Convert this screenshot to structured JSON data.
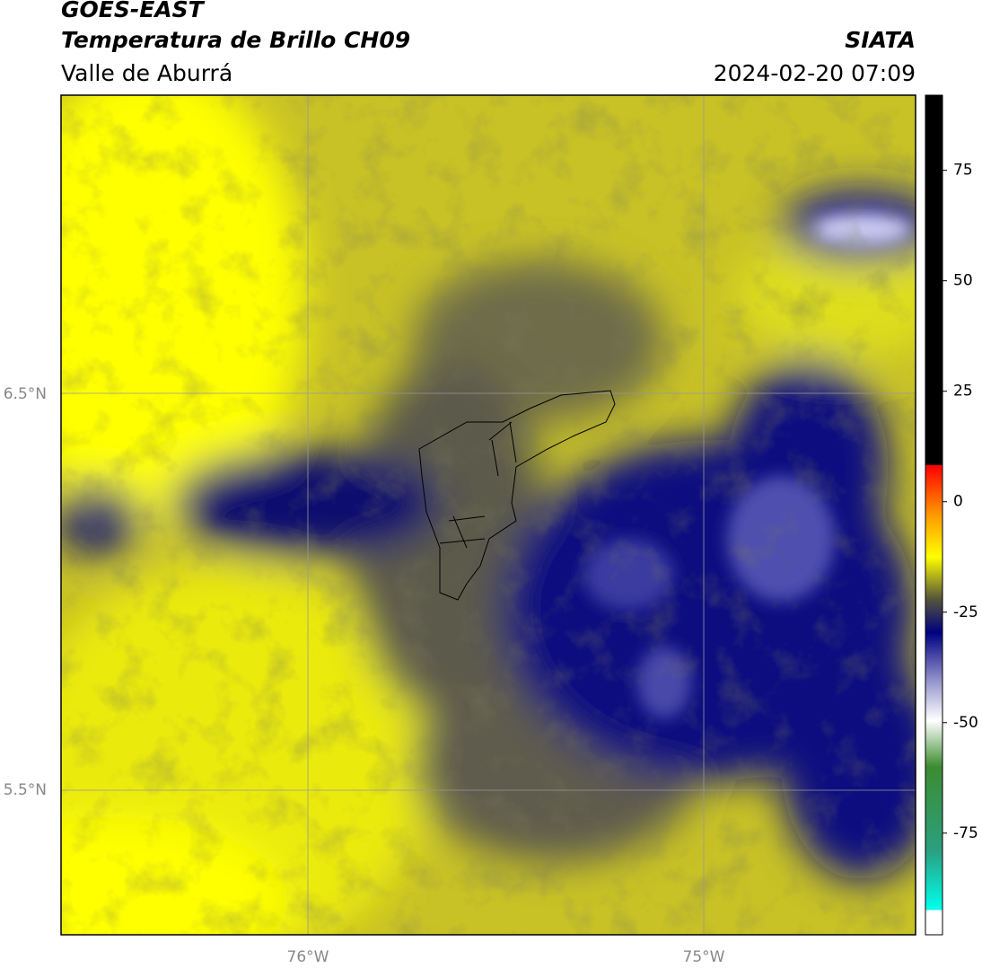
{
  "header": {
    "title": "GOES-EAST",
    "subtitle": "Temperatura de Brillo CH09",
    "region": "Valle de Aburrá",
    "source": "SIATA",
    "datetime": "2024-02-20 07:09"
  },
  "map": {
    "lat_labels": [
      "6.5°N",
      "5.5°N"
    ],
    "lon_labels": [
      "76°W",
      "75°W"
    ]
  },
  "colorbar": {
    "range": [
      -98,
      92
    ],
    "ticks": [
      75,
      50,
      25,
      0,
      -25,
      -50,
      -75
    ]
  }
}
